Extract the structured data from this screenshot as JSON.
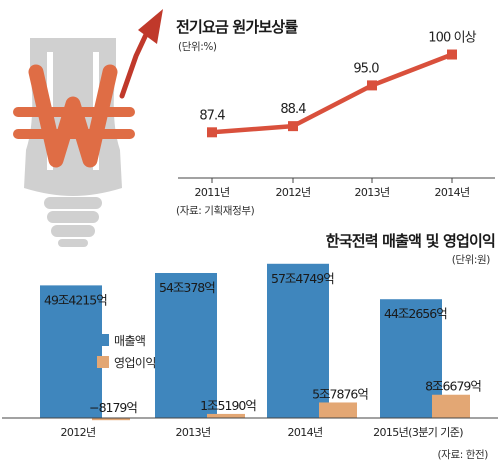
{
  "colors": {
    "line": "#d9503c",
    "revenue": "#3f86bd",
    "profit": "#e3a774",
    "bulb": "#d0d0d0",
    "won": "#df6d45",
    "arrow": "#c0392b"
  },
  "chart_data": [
    {
      "type": "line",
      "title": "전기요금 원가보상률",
      "unit": "(단위:%)",
      "source": "(자료: 기획재정부)",
      "categories": [
        "2011년",
        "2012년",
        "2013년",
        "2014년"
      ],
      "values": [
        87.4,
        88.4,
        95.0,
        100
      ],
      "value_labels": [
        "87.4",
        "88.4",
        "95.0",
        "100 이상"
      ],
      "ylim": [
        80,
        103
      ]
    },
    {
      "type": "bar",
      "title": "한국전력 매출액 및 영업이익",
      "unit": "(단위:원)",
      "source": "(자료: 한전)",
      "categories": [
        "2012년",
        "2013년",
        "2014년",
        "2015년(3분기 기준)"
      ],
      "ylim": [
        0,
        60
      ],
      "series": [
        {
          "name": "매출액",
          "values": [
            49.4215,
            54.0378,
            57.4749,
            44.2656
          ],
          "labels": [
            "49조4215억",
            "54조378억",
            "57조4749억",
            "44조2656억"
          ]
        },
        {
          "name": "영업이익",
          "values": [
            -0.8179,
            1.519,
            5.7876,
            8.6679
          ],
          "labels": [
            "−8179억",
            "1조5190억",
            "5조7876억",
            "8조6679억"
          ]
        }
      ]
    }
  ]
}
